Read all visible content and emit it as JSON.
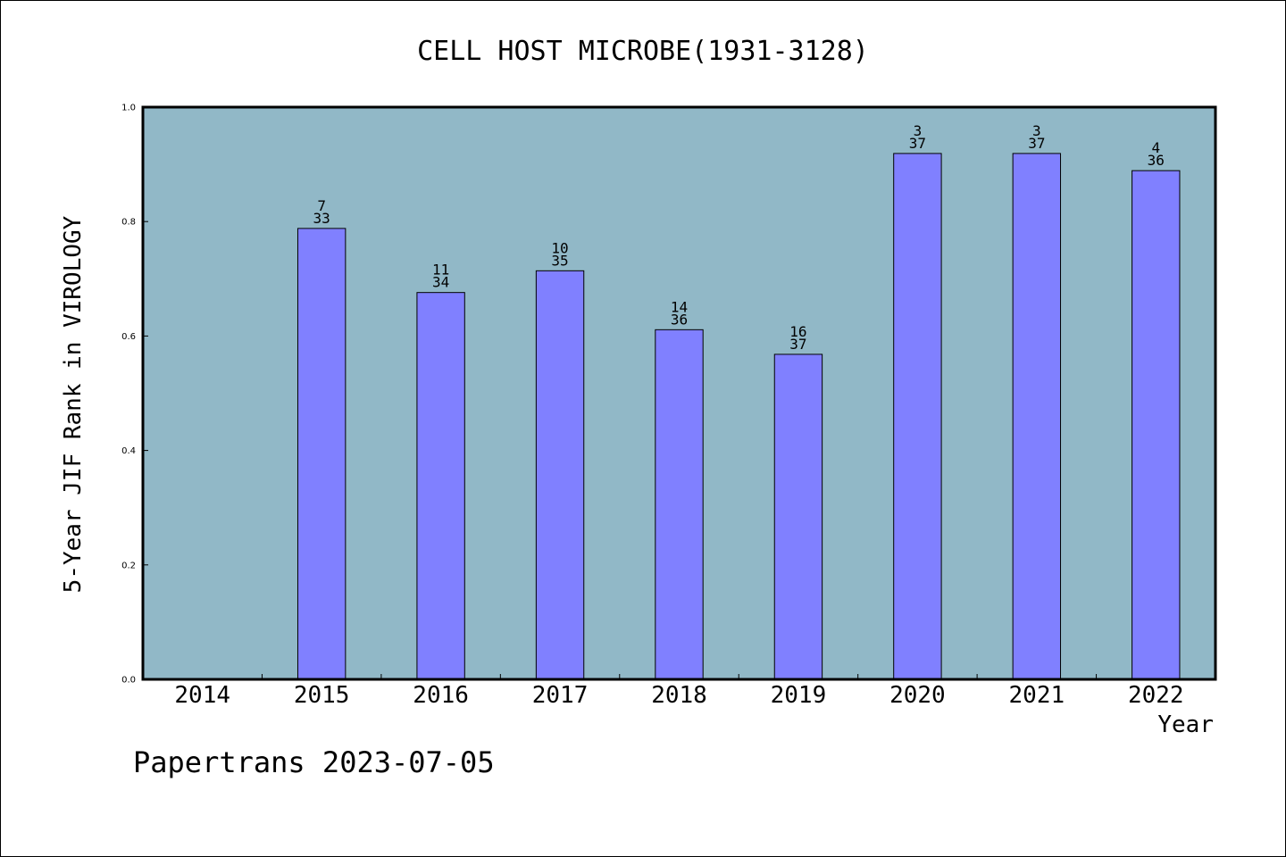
{
  "chart_data": {
    "type": "bar",
    "title": "CELL HOST MICROBE(1931-3128)",
    "xlabel": "Year",
    "ylabel": "5-Year JIF Rank in VIROLOGY",
    "categories": [
      "2014",
      "2015",
      "2016",
      "2017",
      "2018",
      "2019",
      "2020",
      "2021",
      "2022"
    ],
    "values": [
      null,
      0.788,
      0.676,
      0.714,
      0.611,
      0.568,
      0.919,
      0.919,
      0.889
    ],
    "rank_labels": [
      "",
      "7",
      "11",
      "10",
      "14",
      "16",
      "3",
      "3",
      "4"
    ],
    "total_labels": [
      "",
      "33",
      "34",
      "35",
      "36",
      "37",
      "37",
      "37",
      "36"
    ],
    "ylim": [
      0.0,
      1.0
    ],
    "yticks": [
      "0.0",
      "0.2",
      "0.4",
      "0.6",
      "0.8",
      "1.0"
    ],
    "grid": false,
    "colors": {
      "plot_background": "#91b8c7",
      "bar_fill": "#8080ff",
      "bar_stroke": "#000000"
    }
  },
  "footer": {
    "text": "Papertrans 2023-07-05"
  }
}
